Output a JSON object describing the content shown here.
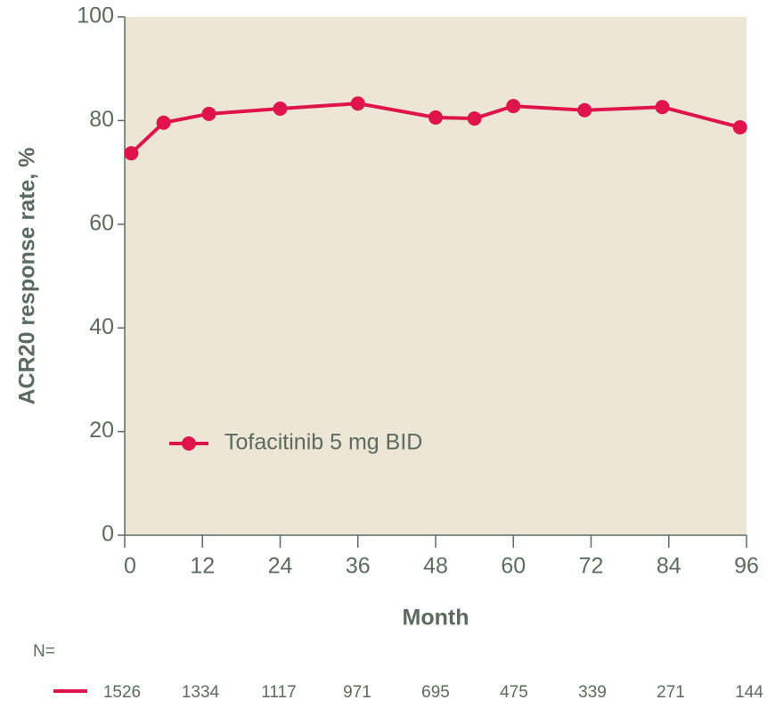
{
  "chart_data": {
    "type": "line",
    "x_label": "Month",
    "y_label": "ACR20 response rate, %",
    "x": [
      1,
      6,
      13,
      24,
      36,
      48,
      54,
      60,
      71,
      83,
      95
    ],
    "series": [
      {
        "name": "Tofacitinib 5 mg BID",
        "color": "#e0144c",
        "values": [
          73.7,
          79.6,
          81.3,
          82.3,
          83.3,
          80.6,
          80.4,
          82.8,
          82.0,
          82.6,
          78.7
        ]
      }
    ],
    "xlim": [
      0,
      96
    ],
    "xticks": [
      0,
      12,
      24,
      36,
      48,
      60,
      72,
      84,
      96
    ],
    "ylim": [
      0,
      100
    ],
    "yticks": [
      0,
      20,
      40,
      60,
      80,
      100
    ],
    "background": "#ede6d6",
    "n_label": "N=",
    "n_counts": [
      1526,
      1334,
      1117,
      971,
      695,
      475,
      339,
      271,
      144
    ]
  }
}
